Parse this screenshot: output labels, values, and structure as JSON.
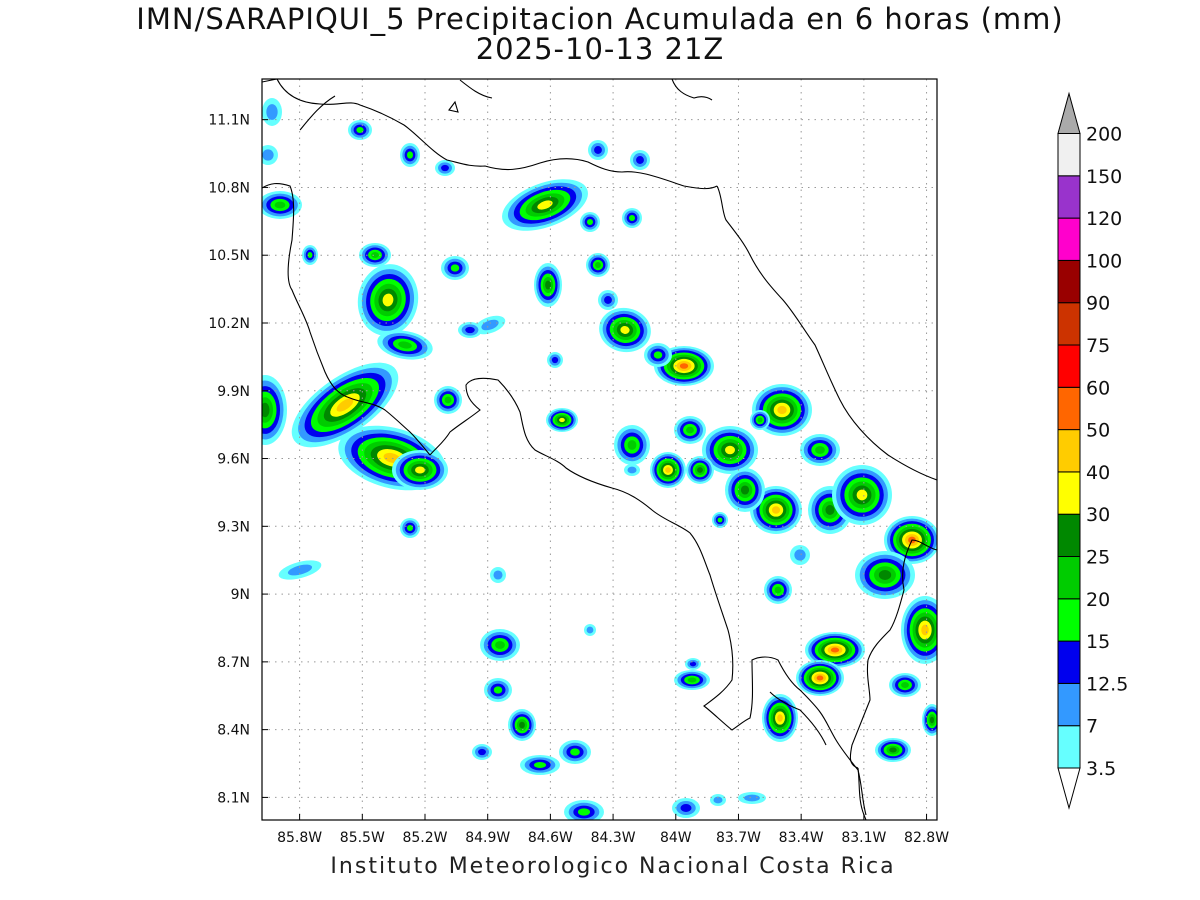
{
  "title": {
    "line1": "IMN/SARAPIQUI_5 Precipitacion Acumulada en 6 horas (mm)",
    "line2": "2025-10-13 21Z"
  },
  "footer": "Instituto Meteorologico Nacional Costa Rica",
  "map": {
    "lon_range": [
      -85.98,
      -82.75
    ],
    "lat_range": [
      8.0,
      11.28
    ],
    "lon_ticks": [
      {
        "value": -85.8,
        "label": "85.8W"
      },
      {
        "value": -85.5,
        "label": "85.5W"
      },
      {
        "value": -85.2,
        "label": "85.2W"
      },
      {
        "value": -84.9,
        "label": "84.9W"
      },
      {
        "value": -84.6,
        "label": "84.6W"
      },
      {
        "value": -84.3,
        "label": "84.3W"
      },
      {
        "value": -84.0,
        "label": "84W"
      },
      {
        "value": -83.7,
        "label": "83.7W"
      },
      {
        "value": -83.4,
        "label": "83.4W"
      },
      {
        "value": -83.1,
        "label": "83.1W"
      },
      {
        "value": -82.8,
        "label": "82.8W"
      }
    ],
    "lat_ticks": [
      {
        "value": 11.1,
        "label": "11.1N"
      },
      {
        "value": 10.8,
        "label": "10.8N"
      },
      {
        "value": 10.5,
        "label": "10.5N"
      },
      {
        "value": 10.2,
        "label": "10.2N"
      },
      {
        "value": 9.9,
        "label": "9.9N"
      },
      {
        "value": 9.6,
        "label": "9.6N"
      },
      {
        "value": 9.3,
        "label": "9.3N"
      },
      {
        "value": 9.0,
        "label": "9N"
      },
      {
        "value": 8.7,
        "label": "8.7N"
      },
      {
        "value": 8.4,
        "label": "8.4N"
      },
      {
        "value": 8.1,
        "label": "8.1N"
      }
    ],
    "grid": "dotted"
  },
  "colorbar": {
    "levels": [
      {
        "label": "3.5",
        "color": "#66ffff"
      },
      {
        "label": "7",
        "color": "#3399ff"
      },
      {
        "label": "12.5",
        "color": "#0000ee"
      },
      {
        "label": "15",
        "color": "#00ff00"
      },
      {
        "label": "20",
        "color": "#00cc00"
      },
      {
        "label": "25",
        "color": "#008800"
      },
      {
        "label": "30",
        "color": "#ffff00"
      },
      {
        "label": "40",
        "color": "#ffcc00"
      },
      {
        "label": "50",
        "color": "#ff6600"
      },
      {
        "label": "60",
        "color": "#ff0000"
      },
      {
        "label": "75",
        "color": "#cc3300"
      },
      {
        "label": "90",
        "color": "#990000"
      },
      {
        "label": "100",
        "color": "#ff00cc"
      },
      {
        "label": "120",
        "color": "#9933cc"
      },
      {
        "label": "150",
        "color": "#f0f0f0"
      },
      {
        "label": "200",
        "color": "#aaaaaa"
      }
    ]
  }
}
